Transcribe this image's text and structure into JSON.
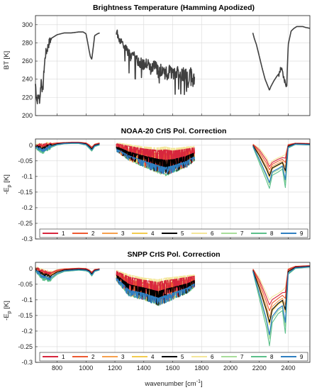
{
  "chart_data": [
    {
      "type": "line",
      "title": "Brightness Temperature (Hamming Apodized)",
      "xlabel": "",
      "ylabel": "BT [K]",
      "xlim": [
        650,
        2550
      ],
      "ylim": [
        200,
        310
      ],
      "xticks": [
        800,
        1000,
        1200,
        1400,
        1600,
        1800,
        2000,
        2200,
        2400
      ],
      "xtick_labels_shown": false,
      "yticks": [
        200,
        220,
        240,
        260,
        280,
        300
      ],
      "grid": true,
      "line_color": "#404040",
      "series": [
        {
          "x": [
            650,
            660,
            670,
            680,
            690,
            700,
            710,
            720,
            730,
            740,
            750,
            760,
            780,
            800,
            850,
            900,
            950,
            980,
            1000,
            1010,
            1020,
            1030,
            1040,
            1050,
            1060,
            1080,
            1095
          ],
          "y": [
            235,
            215,
            222,
            217,
            240,
            225,
            252,
            268,
            272,
            278,
            282,
            285,
            287,
            289,
            291,
            291,
            292,
            292,
            290,
            282,
            273,
            265,
            262,
            275,
            288,
            290,
            291
          ]
        },
        {
          "x": [
            1210,
            1230,
            1250,
            1270,
            1290,
            1310,
            1330,
            1350,
            1380,
            1400,
            1430,
            1450,
            1480,
            1500,
            1530,
            1550,
            1580,
            1600,
            1630,
            1650,
            1680,
            1700,
            1720,
            1740,
            1752
          ],
          "y": [
            293,
            285,
            280,
            274,
            270,
            265,
            268,
            262,
            258,
            255,
            257,
            250,
            255,
            248,
            252,
            246,
            250,
            244,
            248,
            242,
            247,
            240,
            245,
            238,
            242
          ]
        },
        {
          "x": [
            2155,
            2165,
            2180,
            2200,
            2220,
            2240,
            2260,
            2270,
            2280,
            2300,
            2320,
            2340,
            2350,
            2360,
            2370,
            2380,
            2390,
            2400,
            2420,
            2440,
            2460,
            2480,
            2500,
            2520,
            2550
          ],
          "y": [
            291,
            285,
            278,
            265,
            252,
            240,
            232,
            228,
            232,
            238,
            243,
            247,
            252,
            247,
            240,
            236,
            232,
            278,
            293,
            296,
            298,
            298,
            298,
            297,
            296
          ]
        }
      ]
    },
    {
      "type": "line",
      "title": "NOAA-20 CrIS Pol. Correction",
      "xlabel": "",
      "ylabel": "-E_p [K]",
      "ylabel_main": "-E",
      "ylabel_sub": "p",
      "ylabel_unit": " [K]",
      "xlim": [
        650,
        2550
      ],
      "ylim": [
        -0.3,
        0.02
      ],
      "xticks": [
        800,
        1000,
        1200,
        1400,
        1600,
        1800,
        2000,
        2200,
        2400
      ],
      "xtick_labels_shown": false,
      "yticks": [
        -0.3,
        -0.25,
        -0.2,
        -0.15,
        -0.1,
        -0.05,
        0
      ],
      "ytick_labels": [
        "-0.3",
        "-0.25",
        "-0.2",
        "-0.15",
        "-0.1",
        "-0.05",
        "0"
      ],
      "grid": true,
      "legend": "bottom",
      "series": [
        {
          "name": "1",
          "color": "#d7263d"
        },
        {
          "name": "2",
          "color": "#ee5a32"
        },
        {
          "name": "3",
          "color": "#f6a04d"
        },
        {
          "name": "4",
          "color": "#f2cc4f"
        },
        {
          "name": "5",
          "color": "#000000"
        },
        {
          "name": "6",
          "color": "#f3e69a"
        },
        {
          "name": "7",
          "color": "#a8dd9a"
        },
        {
          "name": "8",
          "color": "#5cc08a"
        },
        {
          "name": "9",
          "color": "#2f7fc1"
        }
      ],
      "envelope": {
        "x": [
          650,
          700,
          750,
          800,
          850,
          900,
          950,
          1000,
          1020,
          1040,
          1060,
          1095,
          1210,
          1300,
          1400,
          1500,
          1550,
          1600,
          1650,
          1700,
          1752,
          2155,
          2200,
          2250,
          2270,
          2290,
          2330,
          2360,
          2380,
          2400,
          2450,
          2550
        ],
        "upper": [
          0.002,
          0.003,
          0.006,
          0.008,
          0.009,
          0.01,
          0.01,
          0.008,
          0.003,
          -0.005,
          0.004,
          0.008,
          0.008,
          0.002,
          -0.005,
          -0.008,
          -0.005,
          -0.01,
          -0.008,
          -0.005,
          -0.003,
          0.004,
          -0.01,
          -0.04,
          -0.06,
          -0.05,
          -0.04,
          -0.035,
          -0.03,
          0.003,
          0.007,
          0.006
        ],
        "lower": [
          -0.01,
          -0.025,
          -0.01,
          0.0,
          0.004,
          0.005,
          0.005,
          0.0,
          -0.01,
          -0.02,
          -0.005,
          0.0,
          -0.02,
          -0.05,
          -0.07,
          -0.09,
          -0.1,
          -0.09,
          -0.08,
          -0.07,
          -0.05,
          -0.005,
          -0.06,
          -0.12,
          -0.145,
          -0.1,
          -0.09,
          -0.08,
          -0.145,
          -0.01,
          0.002,
          0.0
        ]
      }
    },
    {
      "type": "line",
      "title": "SNPP CrIS Pol. Correction",
      "xlabel": "wavenumber [cm^-1]",
      "xlabel_main": "wavenumber [cm",
      "xlabel_sup": "-1",
      "xlabel_end": "]",
      "ylabel": "-E_p [K]",
      "ylabel_main": "-E",
      "ylabel_sub": "p",
      "ylabel_unit": " [K]",
      "xlim": [
        650,
        2550
      ],
      "ylim": [
        -0.3,
        0.02
      ],
      "xticks": [
        800,
        1000,
        1200,
        1400,
        1600,
        1800,
        2000,
        2200,
        2400
      ],
      "xtick_labels": [
        "800",
        "1000",
        "1200",
        "1400",
        "1600",
        "1800",
        "2000",
        "2200",
        "2400"
      ],
      "yticks": [
        -0.3,
        -0.25,
        -0.2,
        -0.15,
        -0.1,
        -0.05,
        0
      ],
      "ytick_labels": [
        "-0.3",
        "-0.25",
        "-0.2",
        "-0.15",
        "-0.1",
        "-0.05",
        "0"
      ],
      "grid": true,
      "legend": "bottom",
      "series": [
        {
          "name": "1",
          "color": "#d7263d"
        },
        {
          "name": "2",
          "color": "#ee5a32"
        },
        {
          "name": "3",
          "color": "#f6a04d"
        },
        {
          "name": "4",
          "color": "#f2cc4f"
        },
        {
          "name": "5",
          "color": "#000000"
        },
        {
          "name": "6",
          "color": "#f3e69a"
        },
        {
          "name": "7",
          "color": "#a8dd9a"
        },
        {
          "name": "8",
          "color": "#5cc08a"
        },
        {
          "name": "9",
          "color": "#2f7fc1"
        }
      ],
      "envelope": {
        "x": [
          650,
          700,
          750,
          800,
          850,
          900,
          950,
          1000,
          1020,
          1040,
          1060,
          1095,
          1210,
          1300,
          1400,
          1500,
          1550,
          1600,
          1650,
          1700,
          1752,
          2155,
          2200,
          2250,
          2270,
          2290,
          2330,
          2360,
          2380,
          2400,
          2450,
          2550
        ],
        "upper": [
          0.004,
          -0.005,
          -0.012,
          -0.003,
          0.0,
          0.001,
          0.002,
          0.001,
          -0.003,
          -0.01,
          -0.002,
          0.0,
          -0.005,
          -0.02,
          -0.03,
          -0.035,
          -0.03,
          -0.028,
          -0.025,
          -0.022,
          -0.02,
          0.0,
          -0.03,
          -0.08,
          -0.1,
          -0.09,
          -0.08,
          -0.07,
          -0.06,
          0.0,
          0.008,
          0.01
        ],
        "lower": [
          -0.01,
          -0.035,
          -0.04,
          -0.02,
          -0.01,
          -0.008,
          -0.006,
          -0.008,
          -0.012,
          -0.025,
          -0.01,
          -0.005,
          -0.04,
          -0.09,
          -0.1,
          -0.12,
          -0.11,
          -0.1,
          -0.09,
          -0.08,
          -0.06,
          -0.01,
          -0.1,
          -0.2,
          -0.26,
          -0.18,
          -0.15,
          -0.14,
          -0.22,
          -0.02,
          0.0,
          0.004
        ]
      }
    }
  ]
}
